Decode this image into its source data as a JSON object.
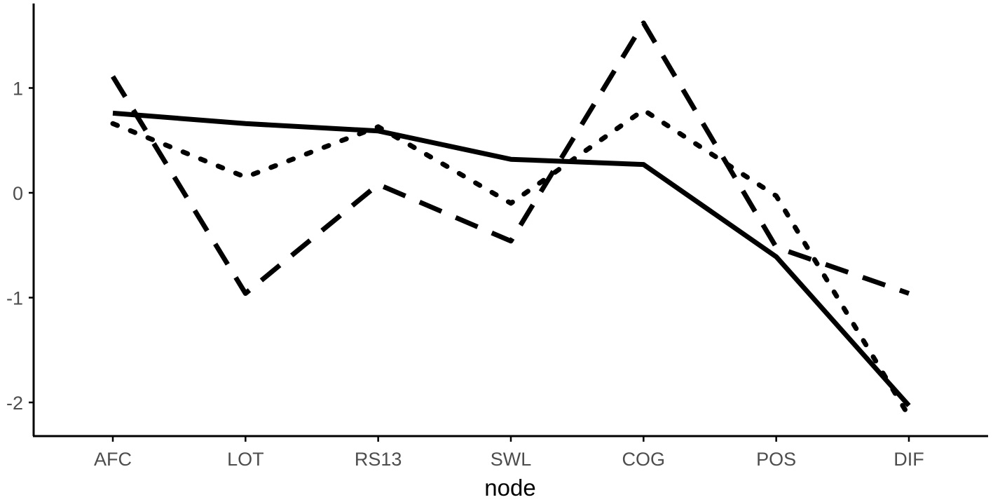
{
  "chart_data": {
    "type": "line",
    "title": "",
    "xlabel": "node",
    "ylabel": "",
    "categories": [
      "AFC",
      "LOT",
      "RS13",
      "SWL",
      "COG",
      "POS",
      "DIF"
    ],
    "yticks": [
      -2,
      -1,
      0,
      1
    ],
    "ylim": [
      -2.32,
      1.82
    ],
    "grid": false,
    "legend": "none",
    "series": [
      {
        "name": "solid",
        "linestyle": "solid",
        "values": [
          0.76,
          0.66,
          0.59,
          0.32,
          0.27,
          -0.61,
          -2.03
        ]
      },
      {
        "name": "dashed",
        "linestyle": "longdash",
        "values": [
          1.11,
          -0.96,
          0.08,
          -0.46,
          1.62,
          -0.52,
          -0.96
        ]
      },
      {
        "name": "dotted",
        "linestyle": "dotted",
        "values": [
          0.66,
          0.15,
          0.63,
          -0.1,
          0.79,
          -0.03,
          -2.13
        ]
      }
    ]
  },
  "axes": {
    "x_title": "node",
    "color": "#000000",
    "tick_label_color": "#4d4d4d"
  }
}
